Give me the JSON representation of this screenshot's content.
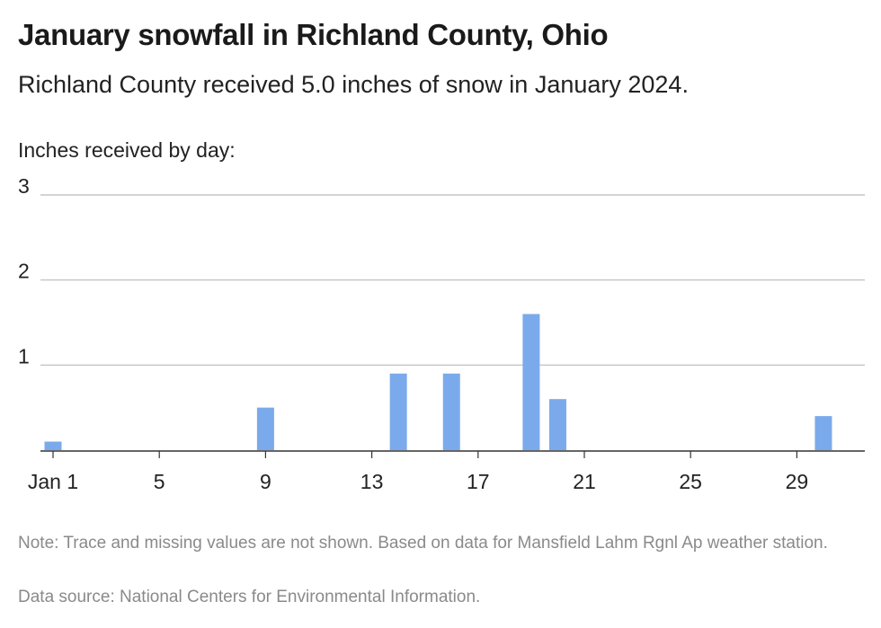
{
  "header": {
    "title": "January snowfall in Richland County, Ohio",
    "subtitle": "Richland County received 5.0 inches of snow in January 2024."
  },
  "footer": {
    "note": "Note: Trace and missing values are not shown. Based on data for Mansfield Lahm Rgnl Ap weather station.",
    "source": "Data source: National Centers for Environmental Information."
  },
  "chart_data": {
    "type": "bar",
    "title": "January snowfall in Richland County, Ohio",
    "subtitle": "Richland County received 5.0 inches of snow in January 2024.",
    "ylabel": "Inches received by day:",
    "xlabel": "",
    "ylim": [
      0,
      3
    ],
    "yticks": [
      1,
      2,
      3
    ],
    "xlim": [
      1,
      31
    ],
    "xticks": [
      {
        "day": 1,
        "label": "Jan 1"
      },
      {
        "day": 5,
        "label": "5"
      },
      {
        "day": 9,
        "label": "9"
      },
      {
        "day": 13,
        "label": "13"
      },
      {
        "day": 17,
        "label": "17"
      },
      {
        "day": 21,
        "label": "21"
      },
      {
        "day": 25,
        "label": "25"
      },
      {
        "day": 29,
        "label": "29"
      }
    ],
    "grid": true,
    "bar_color": "#7aaaeb",
    "points": [
      {
        "day": 1,
        "value": 0.1
      },
      {
        "day": 9,
        "value": 0.5
      },
      {
        "day": 14,
        "value": 0.9
      },
      {
        "day": 16,
        "value": 0.9
      },
      {
        "day": 19,
        "value": 1.6
      },
      {
        "day": 20,
        "value": 0.6
      },
      {
        "day": 30,
        "value": 0.4
      }
    ]
  }
}
